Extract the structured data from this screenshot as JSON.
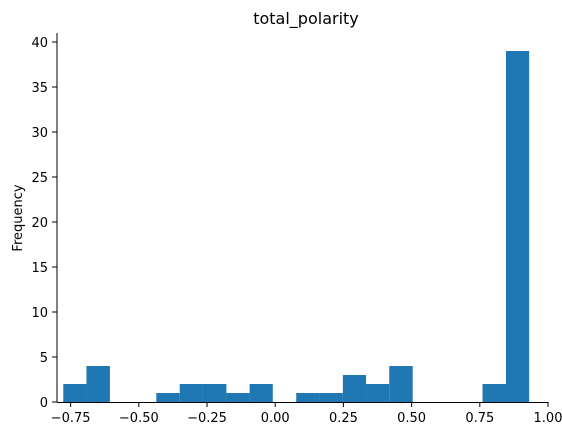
{
  "chart_data": {
    "type": "bar",
    "title": "total_polarity",
    "xlabel": "",
    "ylabel": "Frequency",
    "xlim": [
      -0.8,
      1.0
    ],
    "ylim": [
      0,
      41
    ],
    "grid": false,
    "bar_color": "#1f77b4",
    "x_ticks": [
      -0.75,
      -0.5,
      -0.25,
      0.0,
      0.25,
      0.5,
      0.75,
      1.0
    ],
    "x_tick_labels": [
      "−0.75",
      "−0.50",
      "−0.25",
      "0.00",
      "0.25",
      "0.50",
      "0.75",
      "1.00"
    ],
    "y_ticks": [
      0,
      5,
      10,
      15,
      20,
      25,
      30,
      35,
      40
    ],
    "y_tick_labels": [
      "0",
      "5",
      "10",
      "15",
      "20",
      "25",
      "30",
      "35",
      "40"
    ],
    "bins": [
      {
        "x0": -0.777,
        "x1": -0.692,
        "count": 2
      },
      {
        "x0": -0.692,
        "x1": -0.606,
        "count": 4
      },
      {
        "x0": -0.606,
        "x1": -0.521,
        "count": 0
      },
      {
        "x0": -0.521,
        "x1": -0.436,
        "count": 0
      },
      {
        "x0": -0.436,
        "x1": -0.35,
        "count": 1
      },
      {
        "x0": -0.35,
        "x1": -0.265,
        "count": 2
      },
      {
        "x0": -0.265,
        "x1": -0.179,
        "count": 2
      },
      {
        "x0": -0.179,
        "x1": -0.094,
        "count": 1
      },
      {
        "x0": -0.094,
        "x1": -0.009,
        "count": 2
      },
      {
        "x0": -0.009,
        "x1": 0.077,
        "count": 0
      },
      {
        "x0": 0.077,
        "x1": 0.162,
        "count": 1
      },
      {
        "x0": 0.162,
        "x1": 0.248,
        "count": 1
      },
      {
        "x0": 0.248,
        "x1": 0.333,
        "count": 3
      },
      {
        "x0": 0.333,
        "x1": 0.418,
        "count": 2
      },
      {
        "x0": 0.418,
        "x1": 0.504,
        "count": 4
      },
      {
        "x0": 0.504,
        "x1": 0.589,
        "count": 0
      },
      {
        "x0": 0.589,
        "x1": 0.675,
        "count": 0
      },
      {
        "x0": 0.675,
        "x1": 0.76,
        "count": 0
      },
      {
        "x0": 0.76,
        "x1": 0.846,
        "count": 2
      },
      {
        "x0": 0.846,
        "x1": 0.931,
        "count": 39
      }
    ]
  }
}
